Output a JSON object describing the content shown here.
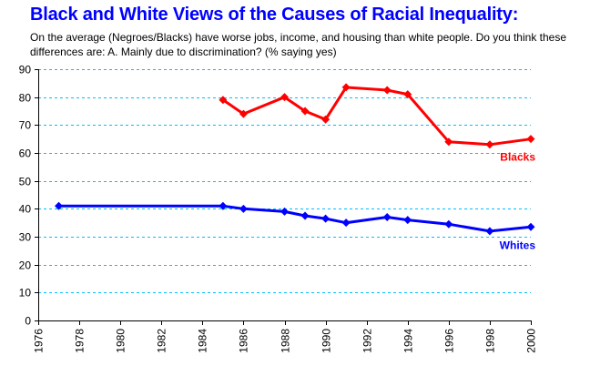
{
  "chart_data": {
    "type": "line",
    "title": "Black and White Views of the Causes of Racial Inequality:",
    "subtitle": "On the average (Negroes/Blacks) have worse jobs, income, and housing than white people. Do you think these differences are: A. Mainly due to discrimination? (% saying yes)",
    "xlabel": "",
    "ylabel": "",
    "xlim": [
      1976,
      2000
    ],
    "ylim": [
      0,
      90
    ],
    "x_ticks": [
      "1976",
      "1978",
      "1980",
      "1982",
      "1984",
      "1986",
      "1988",
      "1990",
      "1992",
      "1994",
      "1996",
      "1998",
      "2000"
    ],
    "y_ticks": [
      "0",
      "10",
      "20",
      "30",
      "40",
      "50",
      "60",
      "70",
      "80",
      "90"
    ],
    "grid": "horizontal dashed",
    "series": [
      {
        "name": "Blacks",
        "color": "#ff0000",
        "x": [
          1985,
          1986,
          1988,
          1989,
          1990,
          1991,
          1993,
          1994,
          1996,
          1998,
          2000
        ],
        "values": [
          79,
          74,
          80,
          75,
          72,
          83.5,
          82.5,
          81,
          64,
          63,
          65
        ]
      },
      {
        "name": "Whites",
        "color": "#0000ff",
        "x": [
          1977,
          1985,
          1986,
          1988,
          1989,
          1990,
          1991,
          1993,
          1994,
          1996,
          1998,
          2000
        ],
        "values": [
          41,
          41,
          40,
          39,
          37.5,
          36.5,
          35,
          37,
          36,
          34.5,
          32,
          33.5
        ]
      }
    ],
    "gridline_color": "#00bfff"
  }
}
